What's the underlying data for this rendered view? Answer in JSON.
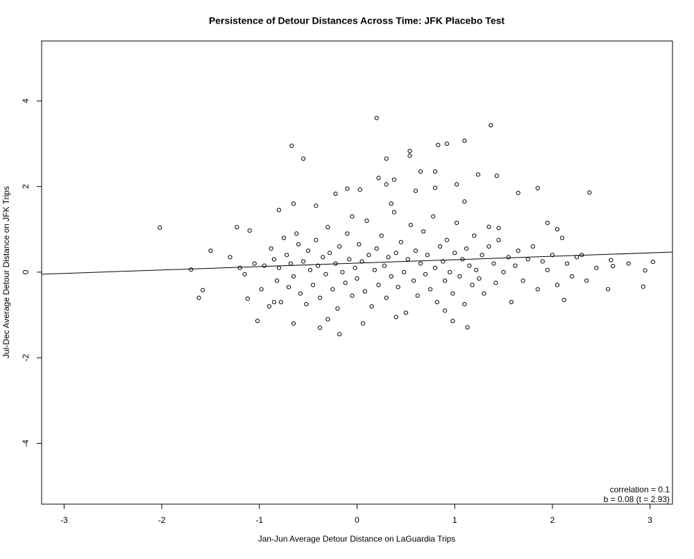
{
  "chart_data": {
    "type": "scatter",
    "title": "Persistence of Detour Distances Across Time: JFK Placebo Test",
    "x_label": "Jan-Jun Average Detour Distance on LaGuardia Trips",
    "y_label": "Jul-Dec Average Detour Distance on JFK Trips",
    "annotations": [
      "correlation = 0.1",
      "b = 0.08 (t = 2.93)"
    ],
    "xlim": [
      -3.23,
      3.23
    ],
    "ylim": [
      -5.42,
      5.4
    ],
    "xticks": [
      -3,
      -2,
      -1,
      0,
      1,
      2,
      3
    ],
    "yticks": [
      -4,
      -2,
      0,
      2,
      4
    ],
    "fit": {
      "intercept": 0.21,
      "slope": 0.08
    },
    "color": "#000000",
    "x": [
      -2.02,
      -1.7,
      -1.62,
      -1.58,
      -1.5,
      -0.67,
      -0.55,
      0.2,
      1.37,
      1.1,
      0.92,
      0.83,
      0.54,
      0.54,
      0.3,
      0.65,
      0.8,
      1.43,
      1.24,
      0.38,
      0.22,
      1.85,
      2.38,
      1.65,
      -0.18,
      -0.38,
      1.13,
      -1.02,
      0.98,
      -0.65,
      0.06,
      2.6,
      2.62,
      2.78,
      2.95,
      3.03,
      2.93,
      2.57,
      2.12,
      -1.23,
      -1.1,
      -0.8,
      -0.65,
      -0.42,
      -0.22,
      -0.1,
      0.03,
      0.3,
      0.8,
      1.02,
      1.1,
      1.35,
      1.45,
      1.95,
      2.05,
      2.3,
      2.1,
      -1.3,
      -1.2,
      -1.15,
      -1.12,
      -1.05,
      -0.98,
      -0.95,
      -0.9,
      -0.88,
      -0.85,
      -0.82,
      -0.8,
      -0.78,
      -0.75,
      -0.72,
      -0.7,
      -0.68,
      -0.65,
      -0.62,
      -0.6,
      -0.58,
      -0.55,
      -0.52,
      -0.5,
      -0.48,
      -0.45,
      -0.42,
      -0.4,
      -0.38,
      -0.35,
      -0.32,
      -0.3,
      -0.28,
      -0.25,
      -0.22,
      -0.2,
      -0.18,
      -0.15,
      -0.12,
      -0.1,
      -0.08,
      -0.05,
      -0.02,
      0.0,
      0.02,
      0.05,
      0.08,
      0.1,
      0.12,
      0.15,
      0.18,
      0.2,
      0.22,
      0.25,
      0.28,
      0.3,
      0.32,
      0.35,
      0.38,
      0.4,
      0.42,
      0.45,
      0.48,
      0.5,
      0.52,
      0.55,
      0.58,
      0.6,
      0.62,
      0.65,
      0.68,
      0.7,
      0.72,
      0.75,
      0.78,
      0.8,
      0.82,
      0.85,
      0.88,
      0.9,
      0.92,
      0.95,
      0.98,
      1.0,
      1.02,
      1.05,
      1.08,
      1.1,
      1.12,
      1.15,
      1.18,
      1.2,
      1.22,
      1.25,
      1.28,
      1.3,
      1.35,
      1.4,
      1.42,
      1.45,
      1.5,
      1.55,
      1.58,
      1.62,
      1.65,
      1.7,
      1.75,
      1.8,
      1.85,
      1.9,
      1.95,
      2.0,
      2.05,
      2.15,
      2.2,
      2.25,
      2.35,
      2.45,
      -0.3,
      0.4,
      0.9,
      -0.85,
      0.6,
      -0.05,
      0.35
    ],
    "values": [
      1.04,
      0.06,
      -0.6,
      -0.42,
      0.5,
      2.95,
      2.65,
      3.6,
      3.43,
      3.07,
      3.0,
      2.97,
      2.83,
      2.72,
      2.65,
      2.35,
      2.35,
      2.25,
      2.28,
      2.16,
      2.2,
      1.96,
      1.86,
      1.85,
      -1.45,
      -1.3,
      -1.29,
      -1.14,
      -1.14,
      -1.2,
      -1.2,
      0.28,
      0.14,
      0.2,
      0.04,
      0.24,
      -0.34,
      -0.4,
      -0.65,
      1.05,
      0.97,
      1.45,
      1.6,
      1.55,
      1.83,
      1.95,
      1.93,
      2.05,
      1.97,
      2.05,
      1.65,
      1.06,
      1.03,
      1.15,
      1.0,
      0.4,
      0.8,
      0.35,
      0.1,
      -0.05,
      -0.62,
      0.2,
      -0.4,
      0.15,
      -0.8,
      0.55,
      0.3,
      -0.2,
      0.1,
      -0.7,
      0.8,
      0.4,
      -0.35,
      0.2,
      -0.1,
      0.9,
      0.65,
      -0.5,
      0.25,
      -0.75,
      0.5,
      0.05,
      -0.3,
      0.75,
      0.15,
      -0.6,
      0.35,
      -0.05,
      1.05,
      0.45,
      -0.4,
      0.2,
      -0.85,
      0.6,
      0.0,
      -0.25,
      0.9,
      0.3,
      -0.55,
      0.1,
      -0.15,
      0.65,
      0.25,
      -0.45,
      1.2,
      0.4,
      -0.8,
      0.05,
      0.55,
      -0.3,
      0.85,
      0.15,
      -0.6,
      0.35,
      -0.1,
      1.4,
      0.45,
      -0.35,
      0.7,
      0.0,
      -0.95,
      0.3,
      1.1,
      -0.2,
      0.5,
      -0.55,
      0.2,
      0.95,
      -0.05,
      0.4,
      -0.4,
      1.3,
      0.1,
      -0.7,
      0.6,
      0.25,
      -0.2,
      0.75,
      0.0,
      -0.5,
      0.45,
      1.15,
      -0.1,
      0.3,
      -0.75,
      0.55,
      0.15,
      -0.3,
      0.85,
      0.05,
      -0.15,
      0.4,
      -0.5,
      0.6,
      0.2,
      -0.25,
      0.75,
      0.0,
      0.35,
      -0.7,
      0.15,
      0.5,
      -0.2,
      0.3,
      0.6,
      -0.4,
      0.25,
      0.05,
      0.4,
      -0.3,
      0.2,
      -0.1,
      0.35,
      -0.2,
      0.1,
      -1.1,
      -1.05,
      -0.9,
      -0.7,
      1.9,
      1.3,
      1.6
    ]
  }
}
